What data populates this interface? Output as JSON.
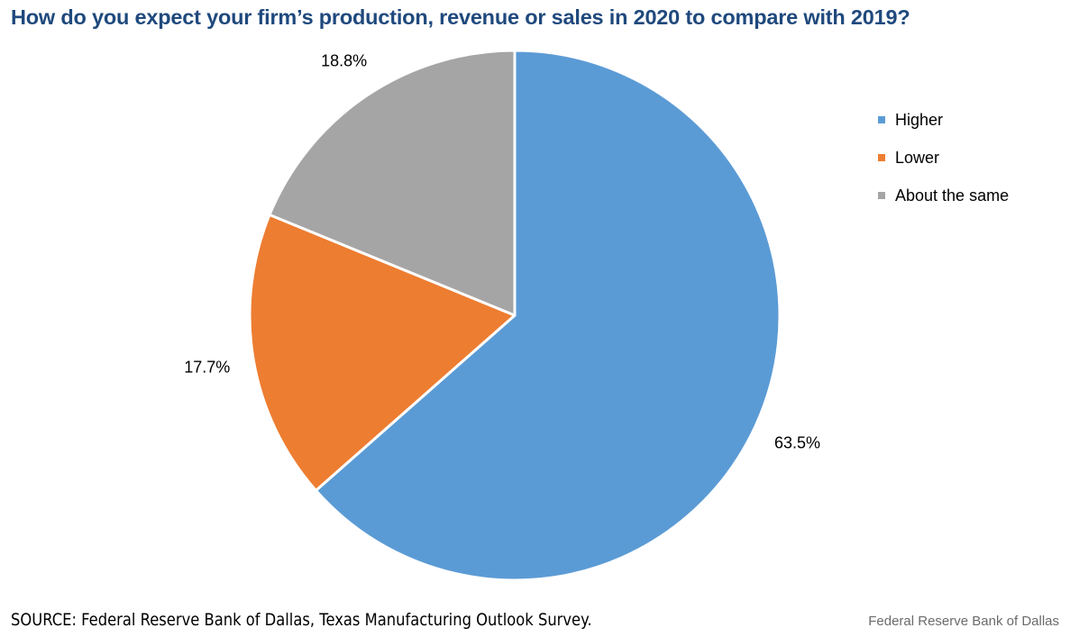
{
  "chart_data": {
    "type": "pie",
    "title": "How do you expect your firm’s production, revenue or sales in 2020 to compare with 2019?",
    "categories": [
      "Higher",
      "Lower",
      "About the same"
    ],
    "values": [
      63.5,
      17.7,
      18.8
    ],
    "data_labels": [
      "63.5%",
      "17.7%",
      "18.8%"
    ],
    "colors": [
      "#5b9bd5",
      "#ed7d31",
      "#a5a5a5"
    ],
    "start_angle_deg": 0,
    "direction": "clockwise",
    "legend_position": "right"
  },
  "footer": {
    "source": "SOURCE: Federal Reserve Bank of Dallas, Texas Manufacturing Outlook Survey.",
    "credit": "Federal Reserve Bank of Dallas"
  }
}
